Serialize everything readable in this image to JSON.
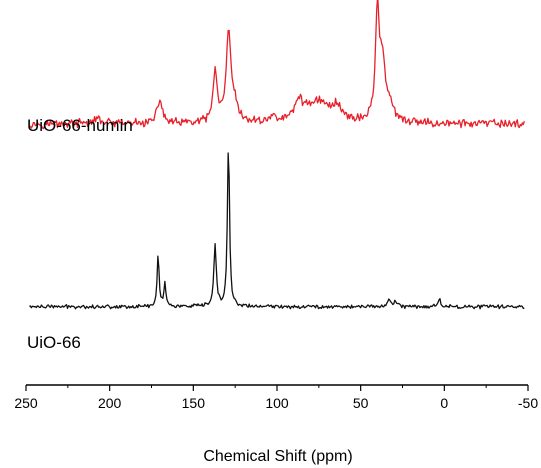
{
  "chart_data": {
    "type": "line",
    "title": "",
    "xlabel": "Chemical Shift (ppm)",
    "ylabel": "",
    "xlim": [
      250,
      -50
    ],
    "x_reversed": true,
    "xticks": [
      250,
      200,
      150,
      100,
      50,
      0,
      -50
    ],
    "ylim": [
      0,
      100
    ],
    "y_ticks_shown": false,
    "grid": false,
    "legend": "none (series labeled inline)",
    "series": [
      {
        "name": "UiO-66-humin",
        "color": "#e8202a",
        "baseline": 70,
        "noise": 0.9,
        "peaks": [
          {
            "ppm": 207,
            "height": 1.2,
            "width": 3
          },
          {
            "ppm": 170,
            "height": 6.5,
            "width": 1.8
          },
          {
            "ppm": 137,
            "height": 14.0,
            "width": 1.4
          },
          {
            "ppm": 129,
            "height": 22.5,
            "width": 1.6
          },
          {
            "ppm": 126,
            "height": 5.0,
            "width": 2.5
          },
          {
            "ppm": 103,
            "height": 1.2,
            "width": 3
          },
          {
            "ppm": 87,
            "height": 5.0,
            "width": 2.5
          },
          {
            "ppm": 76,
            "height": 6.0,
            "width": 9
          },
          {
            "ppm": 64,
            "height": 3.5,
            "width": 3
          },
          {
            "ppm": 40,
            "height": 28.0,
            "width": 1.4
          },
          {
            "ppm": 37,
            "height": 15.0,
            "width": 2.0
          },
          {
            "ppm": 33,
            "height": 4.0,
            "width": 2.5
          }
        ]
      },
      {
        "name": "UiO-66",
        "color": "#111111",
        "baseline": 21,
        "noise": 0.4,
        "peaks": [
          {
            "ppm": 171,
            "height": 14.0,
            "width": 0.7
          },
          {
            "ppm": 167,
            "height": 6.5,
            "width": 0.7
          },
          {
            "ppm": 137,
            "height": 16.0,
            "width": 0.9
          },
          {
            "ppm": 129,
            "height": 44.0,
            "width": 0.75
          },
          {
            "ppm": 33,
            "height": 2.0,
            "width": 1.2
          },
          {
            "ppm": 29,
            "height": 1.3,
            "width": 1.2
          },
          {
            "ppm": 3,
            "height": 2.0,
            "width": 1.0
          }
        ]
      }
    ],
    "series_labels": [
      "UiO-66-humin",
      "UiO-66"
    ]
  }
}
